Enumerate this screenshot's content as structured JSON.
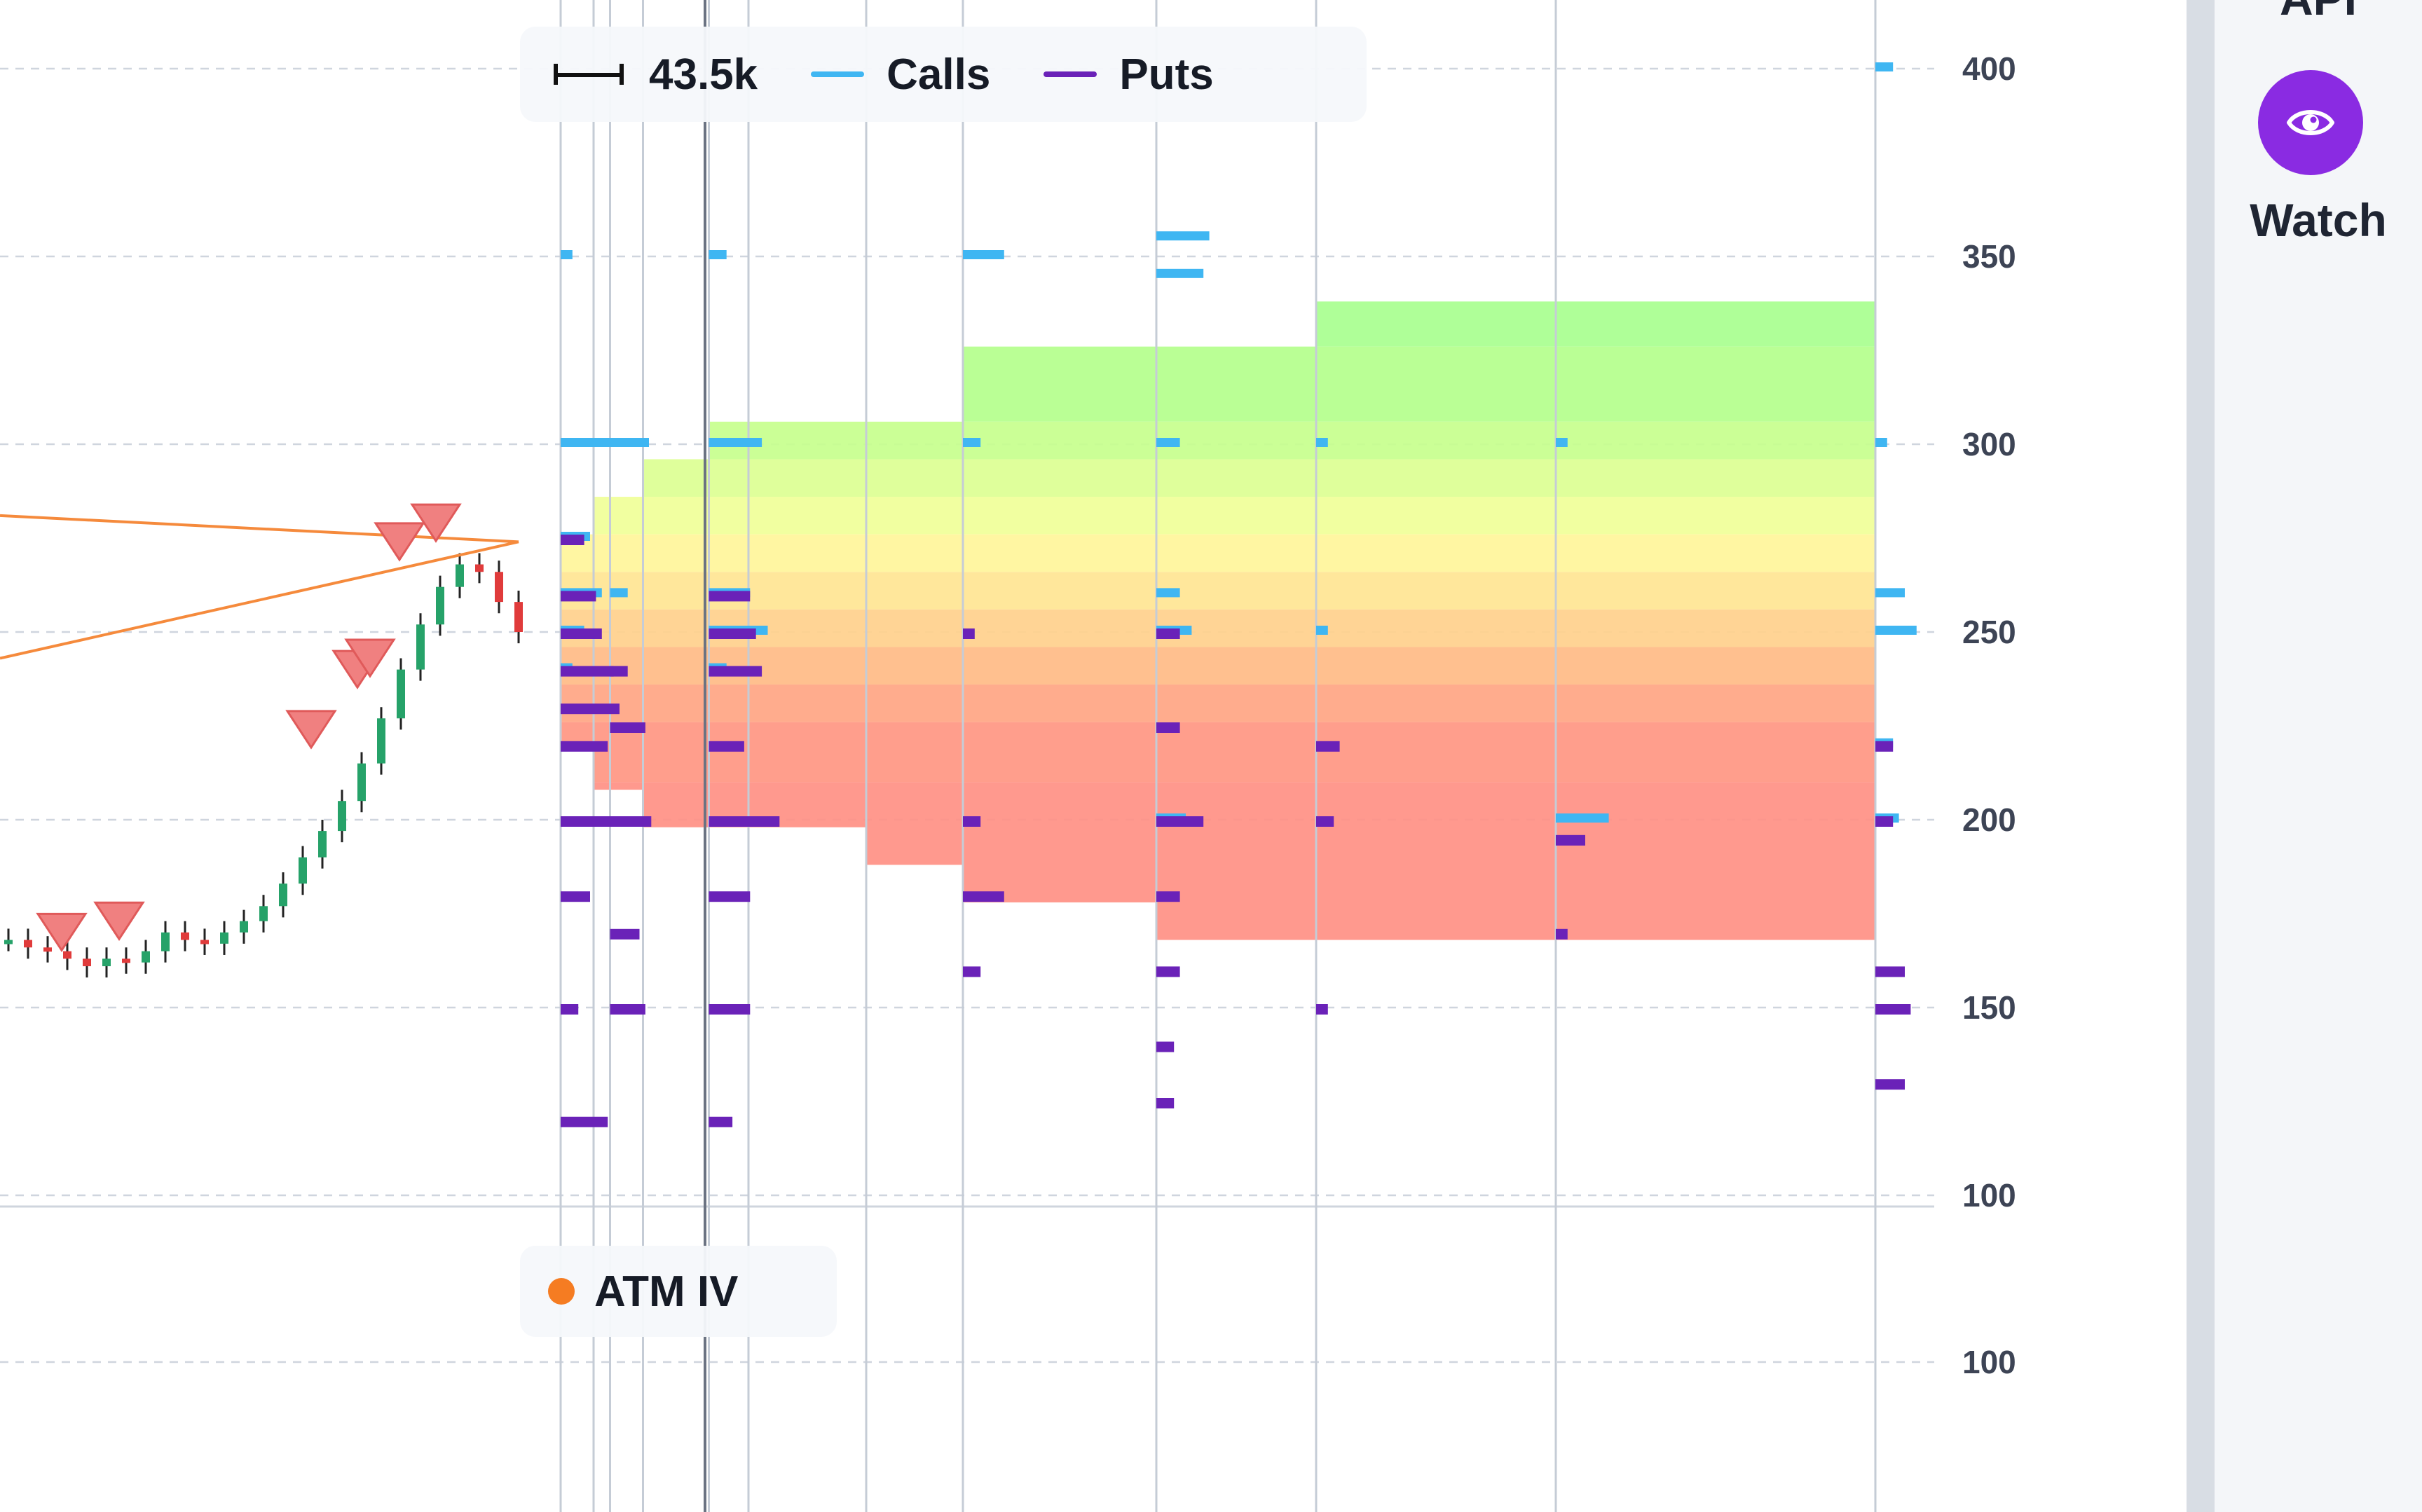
{
  "legend": {
    "width_value": "43.5k",
    "calls_label": "Calls",
    "puts_label": "Puts",
    "atm_label": "ATM IV"
  },
  "sidebar": {
    "watch_label": "Watch",
    "top_label": "API"
  },
  "colors": {
    "calls": "#3fb6f2",
    "puts": "#6a22b8",
    "atm": "#f57c22",
    "trendline": "#f58a3c",
    "up_candle": "#26a269",
    "down_candle": "#e03b3b",
    "signal_marker": "#f08080",
    "watch_button": "#8a2be2"
  },
  "icons": {
    "watch": "eye-icon",
    "width": "width-bracket-icon"
  },
  "chart_data": [
    {
      "type": "candlestick",
      "ylabel": "",
      "ylim": [
        100,
        410
      ],
      "yticks": [
        100,
        150,
        200,
        250,
        300,
        350,
        400
      ],
      "grid": true,
      "legend": "top-center",
      "expirations": [
        3,
        5,
        6,
        8,
        12,
        14,
        20,
        40,
        80,
        120,
        180,
        260
      ],
      "projected_ranges": [
        {
          "from": 3,
          "to": 5,
          "low": 220,
          "high": 276
        },
        {
          "from": 5,
          "to": 8,
          "low": 208,
          "high": 286
        },
        {
          "from": 8,
          "to": 12,
          "low": 198,
          "high": 296
        },
        {
          "from": 12,
          "to": 20,
          "low": 198,
          "high": 306
        },
        {
          "from": 20,
          "to": 40,
          "low": 188,
          "high": 306
        },
        {
          "from": 40,
          "to": 80,
          "low": 178,
          "high": 326
        },
        {
          "from": 80,
          "to": 120,
          "low": 168,
          "high": 326
        },
        {
          "from": 120,
          "to": 180,
          "low": 168,
          "high": 338
        },
        {
          "from": 180,
          "to": 260,
          "low": 168,
          "high": 338
        }
      ],
      "prices": [
        168,
        166,
        165,
        163,
        161,
        163,
        162,
        165,
        170,
        168,
        167,
        170,
        173,
        177,
        183,
        190,
        197,
        205,
        215,
        227,
        240,
        252,
        262,
        268,
        266,
        258,
        250
      ],
      "signals": [
        163,
        166,
        217,
        233,
        236,
        267,
        272
      ],
      "open_interest": [
        {
          "exp": 3,
          "strikes": [
            {
              "strike": 350,
              "calls": 4,
              "puts": 0
            },
            {
              "strike": 300,
              "calls": 30,
              "puts": 0
            },
            {
              "strike": 275,
              "calls": 10,
              "puts": 8
            },
            {
              "strike": 260,
              "calls": 14,
              "puts": 12
            },
            {
              "strike": 250,
              "calls": 8,
              "puts": 14
            },
            {
              "strike": 240,
              "calls": 4,
              "puts": 18
            },
            {
              "strike": 230,
              "calls": 0,
              "puts": 20
            },
            {
              "strike": 220,
              "calls": 0,
              "puts": 16
            },
            {
              "strike": 200,
              "calls": 0,
              "puts": 22
            },
            {
              "strike": 180,
              "calls": 0,
              "puts": 10
            },
            {
              "strike": 150,
              "calls": 0,
              "puts": 6
            },
            {
              "strike": 120,
              "calls": 0,
              "puts": 16
            }
          ]
        },
        {
          "exp": 6,
          "strikes": [
            {
              "strike": 300,
              "calls": 12,
              "puts": 0
            },
            {
              "strike": 260,
              "calls": 6,
              "puts": 0
            },
            {
              "strike": 240,
              "calls": 0,
              "puts": 6
            },
            {
              "strike": 225,
              "calls": 0,
              "puts": 12
            },
            {
              "strike": 200,
              "calls": 0,
              "puts": 14
            },
            {
              "strike": 170,
              "calls": 0,
              "puts": 10
            },
            {
              "strike": 150,
              "calls": 0,
              "puts": 12
            }
          ]
        },
        {
          "exp": 12,
          "strikes": [
            {
              "strike": 350,
              "calls": 6,
              "puts": 0
            },
            {
              "strike": 300,
              "calls": 18,
              "puts": 0
            },
            {
              "strike": 260,
              "calls": 14,
              "puts": 14
            },
            {
              "strike": 250,
              "calls": 20,
              "puts": 16
            },
            {
              "strike": 240,
              "calls": 6,
              "puts": 18
            },
            {
              "strike": 220,
              "calls": 0,
              "puts": 12
            },
            {
              "strike": 200,
              "calls": 0,
              "puts": 24
            },
            {
              "strike": 180,
              "calls": 0,
              "puts": 14
            },
            {
              "strike": 150,
              "calls": 0,
              "puts": 14
            },
            {
              "strike": 120,
              "calls": 0,
              "puts": 8
            }
          ]
        },
        {
          "exp": 40,
          "strikes": [
            {
              "strike": 350,
              "calls": 14,
              "puts": 0
            },
            {
              "strike": 300,
              "calls": 6,
              "puts": 0
            },
            {
              "strike": 250,
              "calls": 0,
              "puts": 4
            },
            {
              "strike": 200,
              "calls": 0,
              "puts": 6
            },
            {
              "strike": 180,
              "calls": 0,
              "puts": 14
            },
            {
              "strike": 160,
              "calls": 0,
              "puts": 6
            }
          ]
        },
        {
          "exp": 80,
          "strikes": [
            {
              "strike": 355,
              "calls": 18,
              "puts": 0
            },
            {
              "strike": 345,
              "calls": 16,
              "puts": 0
            },
            {
              "strike": 300,
              "calls": 8,
              "puts": 0
            },
            {
              "strike": 260,
              "calls": 8,
              "puts": 0
            },
            {
              "strike": 250,
              "calls": 12,
              "puts": 8
            },
            {
              "strike": 225,
              "calls": 0,
              "puts": 8
            },
            {
              "strike": 200,
              "calls": 10,
              "puts": 16
            },
            {
              "strike": 180,
              "calls": 0,
              "puts": 8
            },
            {
              "strike": 160,
              "calls": 0,
              "puts": 8
            },
            {
              "strike": 140,
              "calls": 0,
              "puts": 6
            },
            {
              "strike": 125,
              "calls": 0,
              "puts": 6
            }
          ]
        },
        {
          "exp": 120,
          "strikes": [
            {
              "strike": 300,
              "calls": 4,
              "puts": 0
            },
            {
              "strike": 250,
              "calls": 4,
              "puts": 0
            },
            {
              "strike": 220,
              "calls": 0,
              "puts": 8
            },
            {
              "strike": 200,
              "calls": 0,
              "puts": 6
            },
            {
              "strike": 150,
              "calls": 0,
              "puts": 4
            }
          ]
        },
        {
          "exp": 180,
          "strikes": [
            {
              "strike": 300,
              "calls": 4,
              "puts": 0
            },
            {
              "strike": 200,
              "calls": 18,
              "puts": 0
            },
            {
              "strike": 195,
              "calls": 0,
              "puts": 10
            },
            {
              "strike": 170,
              "calls": 0,
              "puts": 4
            }
          ]
        },
        {
          "exp": 260,
          "strikes": [
            {
              "strike": 400,
              "calls": 6,
              "puts": 0
            },
            {
              "strike": 300,
              "calls": 4,
              "puts": 0
            },
            {
              "strike": 260,
              "calls": 10,
              "puts": 0
            },
            {
              "strike": 250,
              "calls": 14,
              "puts": 0
            },
            {
              "strike": 220,
              "calls": 6,
              "puts": 6
            },
            {
              "strike": 200,
              "calls": 8,
              "puts": 6
            },
            {
              "strike": 160,
              "calls": 0,
              "puts": 10
            },
            {
              "strike": 150,
              "calls": 0,
              "puts": 12
            },
            {
              "strike": 130,
              "calls": 0,
              "puts": 10
            }
          ]
        }
      ]
    },
    {
      "type": "line",
      "title": "ATM IV",
      "yticks": [
        100
      ],
      "grid": true,
      "series": [
        {
          "name": "ATM IV",
          "values": []
        }
      ]
    }
  ]
}
